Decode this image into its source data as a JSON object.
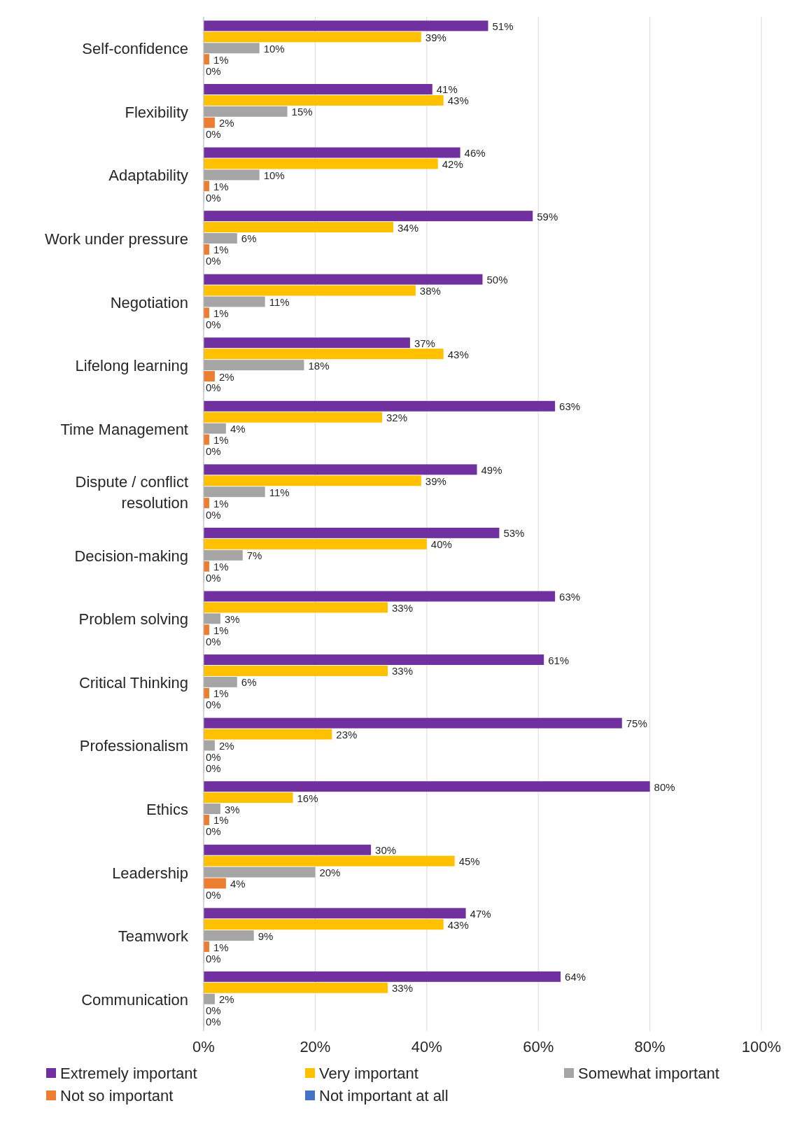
{
  "chart_data": {
    "type": "bar",
    "orientation": "horizontal",
    "categories": [
      "Self-confidence",
      "Flexibility",
      "Adaptability",
      "Work under pressure",
      "Negotiation",
      "Lifelong learning",
      "Time Management",
      "Dispute / conflict resolution",
      "Decision-making",
      "Problem solving",
      "Critical Thinking",
      "Professionalism",
      "Ethics",
      "Leadership",
      "Teamwork",
      "Communication"
    ],
    "series": [
      {
        "name": "Extremely important",
        "color": "#7030a0",
        "values": [
          51,
          41,
          46,
          59,
          50,
          37,
          63,
          49,
          53,
          63,
          61,
          75,
          80,
          30,
          47,
          64
        ],
        "value_labels": [
          "51%",
          "41%",
          "46%",
          "59%",
          "50%",
          "37%",
          "63%",
          "49%",
          "53%",
          "63%",
          "61%",
          "75%",
          "80%",
          "30%",
          "47%",
          "64%"
        ]
      },
      {
        "name": "Very important",
        "color": "#ffc000",
        "values": [
          39,
          43,
          42,
          34,
          38,
          43,
          32,
          39,
          40,
          33,
          33,
          23,
          16,
          45,
          43,
          33
        ],
        "value_labels": [
          "39%",
          "43%",
          "42%",
          "34%",
          "38%",
          "43%",
          "32%",
          "39%",
          "40%",
          "33%",
          "33%",
          "23%",
          "16%",
          "45%",
          "43%",
          "33%"
        ]
      },
      {
        "name": "Somewhat important",
        "color": "#a5a5a5",
        "values": [
          10,
          15,
          10,
          6,
          11,
          18,
          4,
          11,
          7,
          3,
          6,
          2,
          3,
          20,
          9,
          2
        ],
        "value_labels": [
          "10%",
          "15%",
          "10%",
          "6%",
          "11%",
          "18%",
          "4%",
          "11%",
          "7%",
          "3%",
          "6%",
          "2%",
          "3%",
          "20%",
          "9%",
          "2%"
        ]
      },
      {
        "name": "Not so important",
        "color": "#ed7d31",
        "values": [
          1,
          2,
          1,
          1,
          1,
          2,
          1,
          1,
          1,
          1,
          1,
          0,
          1,
          4,
          1,
          0
        ],
        "value_labels": [
          "1%",
          "2%",
          "1%",
          "1%",
          "1%",
          "2%",
          "1%",
          "1%",
          "1%",
          "1%",
          "1%",
          "0%",
          "1%",
          "4%",
          "1%",
          "0%"
        ]
      },
      {
        "name": "Not important at all",
        "color": "#4472c4",
        "values": [
          0,
          0,
          0,
          0,
          0,
          0,
          0,
          0,
          0,
          0,
          0,
          0,
          0,
          0,
          0,
          0
        ],
        "value_labels": [
          "0%",
          "0%",
          "0%",
          "0%",
          "0%",
          "0%",
          "0%",
          "0%",
          "0%",
          "0%",
          "0%",
          "0%",
          "0%",
          "0%",
          "0%",
          "0%"
        ]
      }
    ],
    "xlim": [
      0,
      100
    ],
    "xticks": [
      {
        "value": 0,
        "label": "0%"
      },
      {
        "value": 20,
        "label": "20%"
      },
      {
        "value": 40,
        "label": "40%"
      },
      {
        "value": 60,
        "label": "60%"
      },
      {
        "value": 80,
        "label": "80%"
      },
      {
        "value": 100,
        "label": "100%"
      }
    ],
    "grid": "x",
    "legend": "bottom"
  }
}
